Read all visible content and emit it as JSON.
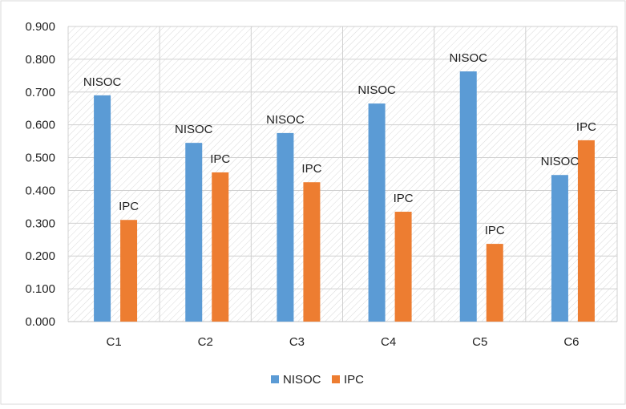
{
  "chart_data": {
    "type": "bar",
    "categories": [
      "C1",
      "C2",
      "C3",
      "C4",
      "C5",
      "C6"
    ],
    "series": [
      {
        "name": "NISOC",
        "color": "#5B9BD5",
        "values": [
          0.69,
          0.545,
          0.575,
          0.665,
          0.763,
          0.447
        ]
      },
      {
        "name": "IPC",
        "color": "#ED7D31",
        "values": [
          0.31,
          0.455,
          0.425,
          0.335,
          0.237,
          0.553
        ]
      }
    ],
    "ylim": [
      0,
      0.9
    ],
    "yticks": [
      "0.000",
      "0.100",
      "0.200",
      "0.300",
      "0.400",
      "0.500",
      "0.600",
      "0.700",
      "0.800",
      "0.900"
    ],
    "grid": true,
    "legend": "bottom",
    "title": "",
    "xlabel": "",
    "ylabel": ""
  }
}
